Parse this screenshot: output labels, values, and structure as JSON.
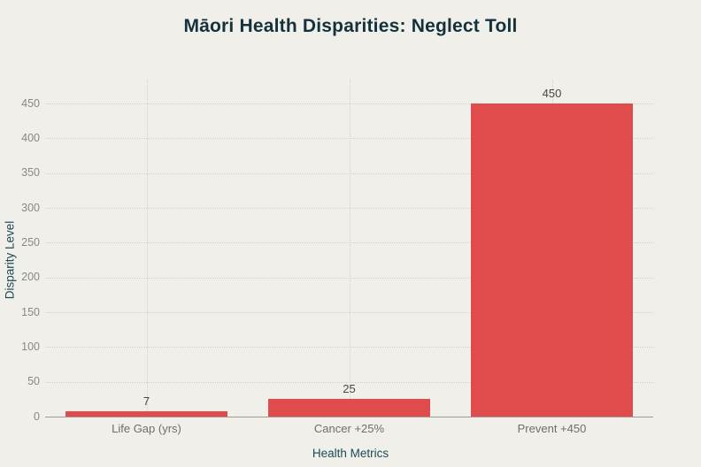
{
  "colors": {
    "background": "#f0efe9",
    "bar": "#e04b4b",
    "title": "#14323c",
    "axis_title": "#1d4a54",
    "y_tick_label": "#898984",
    "x_tick_label": "#6f6f6a",
    "value_label": "#474744",
    "grid": "#d2cfc4",
    "axis_line": "#9b9b97"
  },
  "chart_data": {
    "type": "bar",
    "title": "Māori Health Disparities: Neglect Toll",
    "categories": [
      "Life Gap (yrs)",
      "Cancer +25%",
      "Prevent +450"
    ],
    "values": [
      7,
      25,
      450
    ],
    "value_labels": [
      "7",
      "25",
      "450"
    ],
    "xlabel": "Health Metrics",
    "ylabel": "Disparity Level",
    "ylim": [
      0,
      450
    ],
    "yticks": [
      0,
      50,
      100,
      150,
      200,
      250,
      300,
      350,
      400,
      450
    ],
    "grid": true,
    "legend": "none",
    "bar_color": "#e04b4b"
  }
}
